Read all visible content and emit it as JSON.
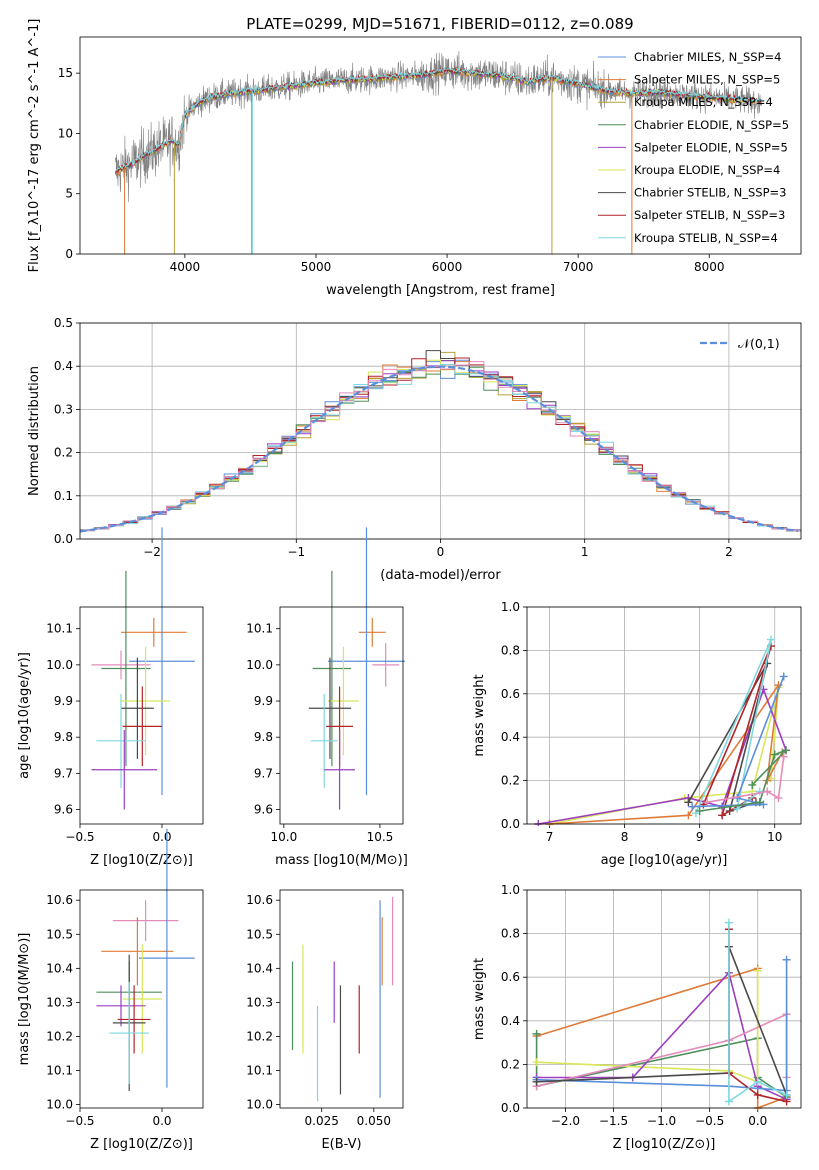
{
  "figure_title": "PLATE=0299, MJD=51671, FIBERID=0112, z=0.089",
  "colors": {
    "chabrier_miles": "#5b8fdc",
    "salpeter_miles": "#e07b39",
    "kroupa_miles": "#b5a13b",
    "chabrier_elodie": "#4e8f5a",
    "salpeter_elodie": "#9b3fc0",
    "kroupa_elodie": "#d8e65a",
    "chabrier_stelib": "#4a4a4a",
    "salpeter_stelib": "#b0242a",
    "kroupa_stelib": "#7fd8e0",
    "pink": "#e48bb9",
    "data_gray": "#808080",
    "normal_curve": "#5b8fdc"
  },
  "chart_data": [
    {
      "id": "spectrum",
      "type": "line",
      "title": "PLATE=0299, MJD=51671, FIBERID=0112, z=0.089",
      "xlabel": "wavelength [Angstrom, rest frame]",
      "ylabel": "Flux [f_λ10^-17 erg cm^-2 s^-1 A^-1]",
      "xlim": [
        3200,
        8700
      ],
      "ylim": [
        0,
        18
      ],
      "xticks": [
        4000,
        5000,
        6000,
        7000,
        8000
      ],
      "yticks": [
        0,
        5,
        10,
        15
      ],
      "continuum": {
        "x": [
          3470,
          3600,
          3700,
          3800,
          3900,
          3950,
          4000,
          4100,
          4200,
          4400,
          4600,
          4800,
          5000,
          5200,
          5400,
          5600,
          5800,
          6000,
          6200,
          6400,
          6600,
          6800,
          7000,
          7200,
          7400,
          7600,
          7800,
          8000,
          8200,
          8400
        ],
        "y": [
          6.8,
          7.5,
          8.2,
          8.8,
          9.4,
          9.0,
          11.5,
          12.5,
          13.0,
          13.4,
          13.6,
          13.9,
          14.2,
          14.4,
          14.5,
          14.7,
          14.8,
          15.2,
          15.0,
          14.8,
          14.3,
          14.6,
          14.1,
          13.6,
          13.3,
          13.4,
          13.2,
          13.0,
          12.8,
          12.6
        ]
      },
      "legend": [
        {
          "name": "Chabrier MILES, N_SSP=4",
          "color": "#5b8fdc"
        },
        {
          "name": "Salpeter MILES, N_SSP=5",
          "color": "#e07b39"
        },
        {
          "name": "Kroupa MILES, N_SSP=4",
          "color": "#b5a13b"
        },
        {
          "name": "Chabrier ELODIE, N_SSP=5",
          "color": "#4e8f5a"
        },
        {
          "name": "Salpeter ELODIE, N_SSP=5",
          "color": "#9b3fc0"
        },
        {
          "name": "Kroupa ELODIE, N_SSP=4",
          "color": "#d8e65a"
        },
        {
          "name": "Chabrier STELIB, N_SSP=3",
          "color": "#4a4a4a"
        },
        {
          "name": "Salpeter STELIB, N_SSP=3",
          "color": "#b0242a"
        },
        {
          "name": "Kroupa STELIB, N_SSP=4",
          "color": "#7fd8e0"
        }
      ],
      "legend_placement": "right"
    },
    {
      "id": "residuals",
      "type": "histogram",
      "xlabel": "(data-model)/error",
      "ylabel": "Normed distribution",
      "xlim": [
        -2.5,
        2.5
      ],
      "ylim": [
        0,
        0.5
      ],
      "xticks": [
        -2,
        -1,
        0,
        1,
        2
      ],
      "yticks": [
        0.0,
        0.1,
        0.2,
        0.3,
        0.4,
        0.5
      ],
      "bin_width": 0.1,
      "legend": [
        {
          "name": "𝒩(0,1)",
          "color": "#5b8fdc"
        }
      ],
      "legend_placement": "top-right",
      "grid": true
    },
    {
      "id": "age_vs_Z",
      "type": "scatter",
      "xlabel": "Z [log10(Z/Z⊙)]",
      "ylabel": "age [log10(age/yr)]",
      "xlim": [
        -0.5,
        0.25
      ],
      "ylim": [
        9.56,
        10.16
      ],
      "xticks": [
        -0.5,
        0.0
      ],
      "yticks": [
        9.6,
        9.7,
        9.8,
        9.9,
        10.0,
        10.1
      ],
      "points": [
        {
          "x": -0.05,
          "y": 10.09,
          "xerr": 0.2,
          "yerr": 0.04,
          "color": "#e07b39"
        },
        {
          "x": -0.25,
          "y": 10.0,
          "xerr": 0.18,
          "yerr": 0.04,
          "color": "#e48bb9"
        },
        {
          "x": 0.0,
          "y": 10.01,
          "xerr": 0.2,
          "yerr": 0.37,
          "color": "#5b8fdc"
        },
        {
          "x": -0.22,
          "y": 9.99,
          "xerr": 0.15,
          "yerr": 0.27,
          "color": "#4e8f5a"
        },
        {
          "x": -0.1,
          "y": 9.9,
          "xerr": 0.15,
          "yerr": 0.15,
          "color": "#d8e65a"
        },
        {
          "x": -0.15,
          "y": 9.88,
          "xerr": 0.1,
          "yerr": 0.14,
          "color": "#4a4a4a"
        },
        {
          "x": -0.12,
          "y": 9.83,
          "xerr": 0.12,
          "yerr": 0.11,
          "color": "#b0242a"
        },
        {
          "x": -0.25,
          "y": 9.79,
          "xerr": 0.15,
          "yerr": 0.13,
          "color": "#7fd8e0"
        },
        {
          "x": -0.23,
          "y": 9.71,
          "xerr": 0.2,
          "yerr": 0.11,
          "color": "#9b3fc0"
        }
      ]
    },
    {
      "id": "age_vs_mass",
      "type": "scatter",
      "xlabel": "mass [log10(M/M⊙)]",
      "ylabel": "",
      "xlim": [
        9.98,
        10.62
      ],
      "ylim": [
        9.56,
        10.16
      ],
      "xticks": [
        10.0,
        10.5
      ],
      "yticks": [
        9.6,
        9.7,
        9.8,
        9.9,
        10.0,
        10.1
      ],
      "points": [
        {
          "x": 10.46,
          "y": 10.09,
          "xerr": 0.07,
          "yerr": 0.04,
          "color": "#e07b39"
        },
        {
          "x": 10.53,
          "y": 10.0,
          "xerr": 0.07,
          "yerr": 0.06,
          "color": "#e48bb9"
        },
        {
          "x": 10.43,
          "y": 10.01,
          "xerr": 0.2,
          "yerr": 0.37,
          "color": "#5b8fdc"
        },
        {
          "x": 10.25,
          "y": 9.99,
          "xerr": 0.1,
          "yerr": 0.27,
          "color": "#4e8f5a"
        },
        {
          "x": 10.31,
          "y": 9.9,
          "xerr": 0.08,
          "yerr": 0.15,
          "color": "#d8e65a"
        },
        {
          "x": 10.24,
          "y": 9.88,
          "xerr": 0.11,
          "yerr": 0.14,
          "color": "#4a4a4a"
        },
        {
          "x": 10.29,
          "y": 9.83,
          "xerr": 0.07,
          "yerr": 0.11,
          "color": "#b0242a"
        },
        {
          "x": 10.21,
          "y": 9.79,
          "xerr": 0.07,
          "yerr": 0.13,
          "color": "#7fd8e0"
        },
        {
          "x": 10.29,
          "y": 9.71,
          "xerr": 0.08,
          "yerr": 0.11,
          "color": "#9b3fc0"
        }
      ]
    },
    {
      "id": "mass_weight_vs_age",
      "type": "line",
      "xlabel": "age [log10(age/yr)]",
      "ylabel": "mass weight",
      "xlim": [
        6.7,
        10.35
      ],
      "ylim": [
        0,
        1.0
      ],
      "xticks": [
        7,
        8,
        9,
        10
      ],
      "yticks": [
        0.0,
        0.2,
        0.4,
        0.6,
        0.8,
        1.0
      ],
      "grid": true,
      "series": [
        {
          "color": "#d8e65a",
          "x": [
            7.0,
            8.8,
            9.7,
            10.05,
            9.95
          ],
          "y": [
            0.0,
            0.12,
            0.15,
            0.63,
            0.21
          ]
        },
        {
          "color": "#e07b39",
          "x": [
            7.0,
            8.85,
            10.05,
            9.9,
            10.1
          ],
          "y": [
            0.0,
            0.04,
            0.64,
            0.2,
            0.33
          ]
        },
        {
          "color": "#9b3fc0",
          "x": [
            6.85,
            8.85,
            9.3,
            9.85,
            10.15
          ],
          "y": [
            0.0,
            0.12,
            0.08,
            0.62,
            0.34
          ]
        },
        {
          "color": "#4a4a4a",
          "x": [
            8.85,
            9.9,
            9.4,
            9.75
          ],
          "y": [
            0.1,
            0.74,
            0.06,
            0.1
          ]
        },
        {
          "color": "#b0242a",
          "x": [
            9.05,
            9.95,
            9.3,
            9.7
          ],
          "y": [
            0.09,
            0.82,
            0.04,
            0.12
          ]
        },
        {
          "color": "#7fd8e0",
          "x": [
            8.95,
            9.95,
            9.5,
            9.8
          ],
          "y": [
            0.05,
            0.85,
            0.07,
            0.15
          ]
        },
        {
          "color": "#5b8fdc",
          "x": [
            8.9,
            9.85,
            9.5,
            10.12
          ],
          "y": [
            0.08,
            0.09,
            0.12,
            0.68
          ]
        },
        {
          "color": "#4e8f5a",
          "x": [
            9.0,
            9.8,
            10.0,
            10.15,
            9.7
          ],
          "y": [
            0.06,
            0.1,
            0.32,
            0.34,
            0.18
          ]
        },
        {
          "color": "#e48bb9",
          "x": [
            9.1,
            9.9,
            10.05,
            10.12
          ],
          "y": [
            0.1,
            0.15,
            0.12,
            0.31
          ]
        }
      ]
    },
    {
      "id": "mass_vs_Z",
      "type": "scatter",
      "xlabel": "Z [log10(Z/Z⊙)]",
      "ylabel": "mass [log10(M/M⊙)]",
      "xlim": [
        -0.5,
        0.25
      ],
      "ylim": [
        9.99,
        10.63
      ],
      "xticks": [
        -0.5,
        0.0
      ],
      "yticks": [
        10.0,
        10.1,
        10.2,
        10.3,
        10.4,
        10.5,
        10.6
      ],
      "points": [
        {
          "x": -0.1,
          "y": 10.54,
          "xerr": 0.2,
          "yerr": 0.06,
          "color": "#e48bb9"
        },
        {
          "x": -0.15,
          "y": 10.45,
          "xerr": 0.22,
          "yerr": 0.1,
          "color": "#e07b39"
        },
        {
          "x": 0.03,
          "y": 10.43,
          "xerr": 0.17,
          "yerr": 0.38,
          "color": "#5b8fdc"
        },
        {
          "x": -0.2,
          "y": 10.33,
          "xerr": 0.2,
          "yerr": 0.09,
          "color": "#4e8f5a"
        },
        {
          "x": -0.12,
          "y": 10.31,
          "xerr": 0.12,
          "yerr": 0.16,
          "color": "#d8e65a"
        },
        {
          "x": -0.25,
          "y": 10.29,
          "xerr": 0.15,
          "yerr": 0.06,
          "color": "#9b3fc0"
        },
        {
          "x": -0.17,
          "y": 10.25,
          "xerr": 0.1,
          "yerr": 0.1,
          "color": "#b0242a"
        },
        {
          "x": -0.2,
          "y": 10.24,
          "xerr": 0.1,
          "yerr": 0.2,
          "color": "#4a4a4a"
        },
        {
          "x": -0.2,
          "y": 10.21,
          "xerr": 0.12,
          "yerr": 0.15,
          "color": "#7fd8e0"
        }
      ]
    },
    {
      "id": "mass_vs_EBV",
      "type": "errorbar",
      "xlabel": "E(B-V)",
      "ylabel": "",
      "xlim": [
        0.005,
        0.064
      ],
      "ylim": [
        9.99,
        10.63
      ],
      "xticks": [
        0.025,
        0.05
      ],
      "yticks": [
        10.0,
        10.1,
        10.2,
        10.3,
        10.4,
        10.5,
        10.6
      ],
      "points": [
        {
          "x": 0.011,
          "y": 10.29,
          "yerr": 0.13,
          "color": "#4e8f5a"
        },
        {
          "x": 0.016,
          "y": 10.31,
          "yerr": 0.16,
          "color": "#d8e65a"
        },
        {
          "x": 0.023,
          "y": 10.15,
          "yerr": 0.14,
          "color": "#7fd8e0"
        },
        {
          "x": 0.031,
          "y": 10.33,
          "yerr": 0.09,
          "color": "#9b3fc0"
        },
        {
          "x": 0.034,
          "y": 10.19,
          "yerr": 0.16,
          "color": "#4a4a4a"
        },
        {
          "x": 0.043,
          "y": 10.25,
          "yerr": 0.1,
          "color": "#b0242a"
        },
        {
          "x": 0.053,
          "y": 10.31,
          "yerr": 0.29,
          "color": "#5b8fdc"
        },
        {
          "x": 0.054,
          "y": 10.45,
          "yerr": 0.1,
          "color": "#e07b39"
        },
        {
          "x": 0.059,
          "y": 10.48,
          "yerr": 0.13,
          "color": "#e48bb9"
        }
      ]
    },
    {
      "id": "mass_weight_vs_Z",
      "type": "line",
      "xlabel": "Z [log10(Z/Z⊙)]",
      "ylabel": "mass weight",
      "xlim": [
        -2.4,
        0.45
      ],
      "ylim": [
        0,
        1.0
      ],
      "xticks": [
        -2.0,
        -1.5,
        -1.0,
        -0.5,
        0.0
      ],
      "yticks": [
        0.0,
        0.2,
        0.4,
        0.6,
        0.8,
        1.0
      ],
      "grid": true,
      "series": [
        {
          "color": "#e07b39",
          "x": [
            -2.3,
            0.0,
            0.0,
            0.3
          ],
          "y": [
            0.33,
            0.64,
            0.0,
            0.05
          ]
        },
        {
          "color": "#4e8f5a",
          "x": [
            -2.3,
            -2.3,
            0.0,
            0.0,
            0.3
          ],
          "y": [
            0.34,
            0.1,
            0.32,
            0.14,
            0.05
          ]
        },
        {
          "color": "#d8e65a",
          "x": [
            -2.3,
            -0.3,
            0.0,
            0.0
          ],
          "y": [
            0.21,
            0.17,
            0.12,
            0.63
          ]
        },
        {
          "color": "#9b3fc0",
          "x": [
            -2.3,
            -1.3,
            -0.3,
            0.0,
            0.3
          ],
          "y": [
            0.14,
            0.14,
            0.62,
            0.1,
            0.04
          ]
        },
        {
          "color": "#e48bb9",
          "x": [
            -2.3,
            -0.3,
            0.3,
            0.3
          ],
          "y": [
            0.1,
            0.31,
            0.43,
            0.14
          ]
        },
        {
          "color": "#5b8fdc",
          "x": [
            -2.3,
            -0.3,
            0.3,
            0.3
          ],
          "y": [
            0.13,
            0.1,
            0.08,
            0.68
          ]
        },
        {
          "color": "#4a4a4a",
          "x": [
            -2.3,
            -0.3,
            -0.3,
            0.3
          ],
          "y": [
            0.12,
            0.16,
            0.74,
            0.06
          ]
        },
        {
          "color": "#b0242a",
          "x": [
            -0.3,
            -0.3,
            0.0,
            0.3
          ],
          "y": [
            0.82,
            0.16,
            0.06,
            0.03
          ]
        },
        {
          "color": "#7fd8e0",
          "x": [
            -0.3,
            -0.3,
            0.0,
            0.3
          ],
          "y": [
            0.85,
            0.03,
            0.12,
            0.06
          ]
        }
      ]
    }
  ]
}
